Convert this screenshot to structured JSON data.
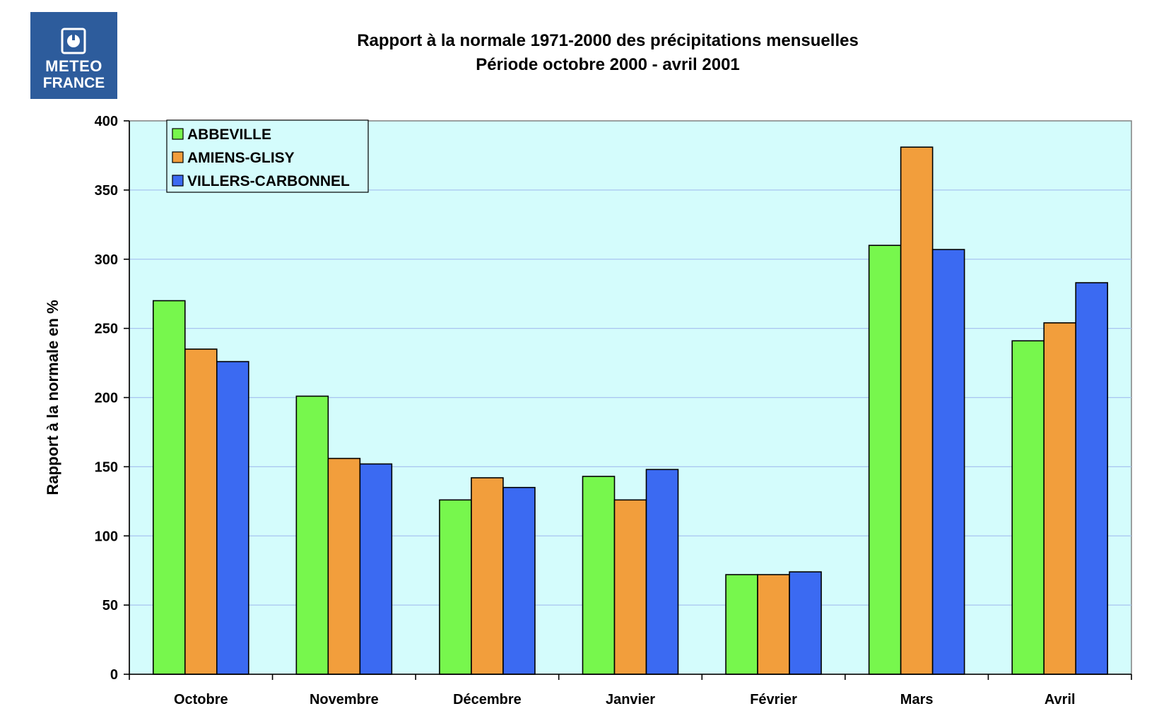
{
  "logo": {
    "line1": "METEO",
    "line2": "FRANCE",
    "background": "#2d5c9c",
    "icon": "meteo-france-emblem-icon"
  },
  "chart_data": {
    "type": "bar",
    "title": "Rapport à la normale 1971-2000 des précipitations mensuelles",
    "subtitle": "Période octobre 2000 - avril 2001",
    "xlabel": "",
    "ylabel": "Rapport à la normale en %",
    "categories": [
      "Octobre",
      "Novembre",
      "Décembre",
      "Janvier",
      "Février",
      "Mars",
      "Avril"
    ],
    "series": [
      {
        "name": "ABBEVILLE",
        "color": "#77f74d",
        "values": [
          270,
          201,
          126,
          143,
          72,
          310,
          241
        ]
      },
      {
        "name": "AMIENS-GLISY",
        "color": "#f29e3c",
        "values": [
          235,
          156,
          142,
          126,
          72,
          381,
          254
        ]
      },
      {
        "name": "VILLERS-CARBONNEL",
        "color": "#3b6af2",
        "values": [
          226,
          152,
          135,
          148,
          74,
          307,
          283
        ]
      }
    ],
    "ylim": [
      0,
      400
    ],
    "yticks": [
      0,
      50,
      100,
      150,
      200,
      250,
      300,
      350,
      400
    ],
    "grid": true,
    "plot_background": "#d4fcfc",
    "gridline_color": "#a8c4f0",
    "legend_position": "top-left"
  }
}
